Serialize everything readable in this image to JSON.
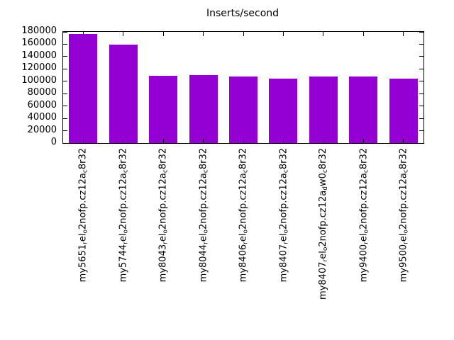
{
  "title": "Inserts/second",
  "chart_data": {
    "type": "bar",
    "title": "Inserts/second",
    "categories": [
      "my5651_rel_o2nofp.cz12a_c8r32",
      "my5744_rel_o2nofp.cz12a_c8r32",
      "my8043_rel_o2nofp.cz12a_c8r32",
      "my8044_rel_o2nofp.cz12a_c8r32",
      "my8406_rel_o2nofp.cz12a_c8r32",
      "my8407_rel_o2nofp.cz12a_c8r32",
      "my8407_rel_o2nofp.cz12a_dw0_c8r32",
      "my9400_rel_o2nofp.cz12a_c8r32",
      "my9500_rel_o2nofp.cz12a_c8r32"
    ],
    "values": [
      177000,
      159000,
      108500,
      110000,
      107500,
      104500,
      108000,
      107500,
      104500
    ],
    "xlabel": "",
    "ylabel": "",
    "ylim": [
      0,
      180000
    ],
    "yticks": [
      0,
      20000,
      40000,
      60000,
      80000,
      100000,
      120000,
      140000,
      160000,
      180000
    ],
    "grid": false,
    "legend_position": "none",
    "bar_color": "#9400d3",
    "axis_color": "#000000",
    "background_color": "#ffffff",
    "x_label_rotation_degrees": 90,
    "x_label_reading": "bottom-to-top",
    "label_format": "gnuplot-enhanced-underscore-subscript"
  }
}
